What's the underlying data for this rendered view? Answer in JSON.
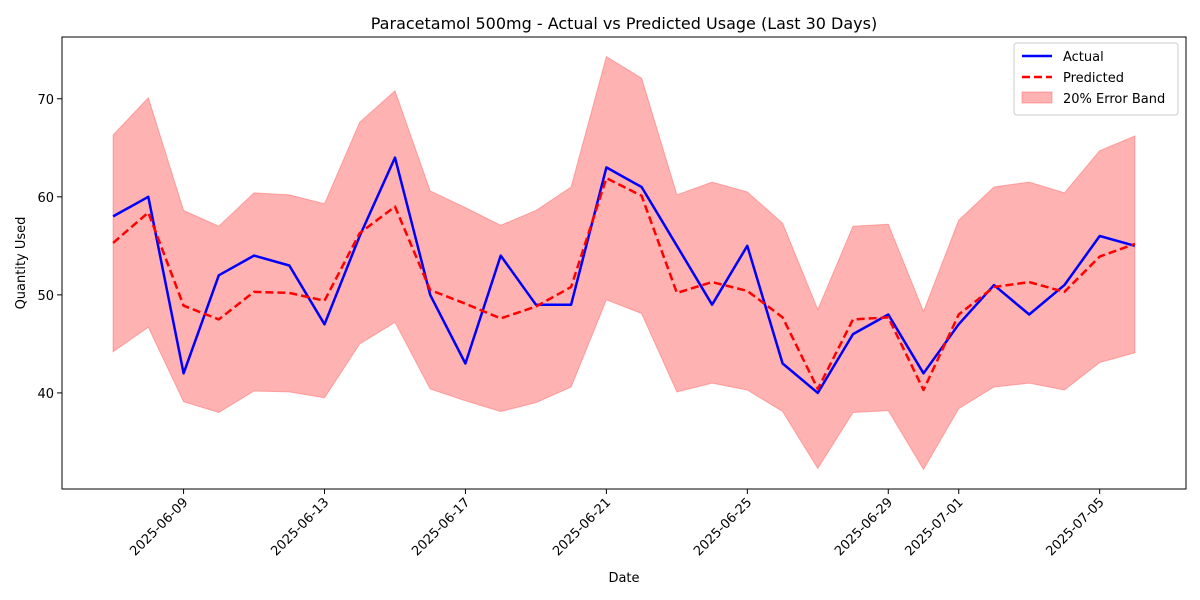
{
  "chart_data": {
    "type": "line",
    "title": "Paracetamol 500mg - Actual vs Predicted Usage (Last 30 Days)",
    "xlabel": "Date",
    "ylabel": "Quantity Used",
    "x": [
      "2025-06-07",
      "2025-06-08",
      "2025-06-09",
      "2025-06-10",
      "2025-06-11",
      "2025-06-12",
      "2025-06-13",
      "2025-06-14",
      "2025-06-15",
      "2025-06-16",
      "2025-06-17",
      "2025-06-18",
      "2025-06-19",
      "2025-06-20",
      "2025-06-21",
      "2025-06-22",
      "2025-06-23",
      "2025-06-24",
      "2025-06-25",
      "2025-06-26",
      "2025-06-27",
      "2025-06-28",
      "2025-06-29",
      "2025-06-30",
      "2025-07-01",
      "2025-07-02",
      "2025-07-03",
      "2025-07-04",
      "2025-07-05",
      "2025-07-06"
    ],
    "xticks": [
      "2025-06-09",
      "2025-06-13",
      "2025-06-17",
      "2025-06-21",
      "2025-06-25",
      "2025-06-29",
      "2025-07-01",
      "2025-07-05"
    ],
    "yticks": [
      40,
      50,
      60,
      70
    ],
    "ylim": [
      30.2,
      76.3
    ],
    "grid": false,
    "legend_position": "top-right",
    "series": [
      {
        "name": "Actual",
        "color": "#0000ff",
        "style": "solid",
        "values": [
          58,
          60,
          42,
          52,
          54,
          53,
          47,
          56,
          64,
          50,
          43,
          54,
          49,
          49,
          63,
          61,
          55,
          49,
          55,
          43,
          40,
          46,
          48,
          42,
          47,
          51,
          48,
          51,
          56,
          55
        ]
      },
      {
        "name": "Predicted",
        "color": "#ff0000",
        "style": "dashed",
        "values": [
          55.3,
          58.4,
          48.9,
          47.5,
          50.3,
          50.2,
          49.4,
          56.3,
          59.0,
          50.5,
          49.1,
          47.6,
          48.8,
          50.8,
          61.9,
          60.1,
          50.2,
          51.3,
          50.4,
          47.7,
          40.4,
          47.5,
          47.7,
          40.3,
          48.0,
          50.8,
          51.3,
          50.3,
          53.9,
          55.2
        ]
      }
    ],
    "band": {
      "name": "20% Error Band",
      "color": "#ff6666",
      "opacity": 0.5,
      "lower": [
        44.2,
        46.7,
        39.1,
        38.0,
        40.2,
        40.1,
        39.5,
        45.0,
        47.2,
        40.4,
        39.2,
        38.1,
        39.0,
        40.6,
        49.5,
        48.1,
        40.1,
        41.0,
        40.3,
        38.1,
        32.3,
        38.0,
        38.2,
        32.2,
        38.4,
        40.6,
        41.0,
        40.3,
        43.1,
        44.1
      ],
      "upper": [
        66.3,
        70.1,
        58.6,
        57.0,
        60.4,
        60.2,
        59.3,
        67.6,
        70.8,
        60.6,
        58.9,
        57.1,
        58.6,
        61.0,
        74.3,
        72.1,
        60.2,
        61.5,
        60.5,
        57.3,
        48.5,
        57.0,
        57.2,
        48.3,
        57.6,
        61.0,
        61.5,
        60.4,
        64.7,
        66.2
      ]
    }
  },
  "legend": {
    "actual_label": "Actual",
    "predicted_label": "Predicted",
    "band_label": "20% Error Band"
  }
}
